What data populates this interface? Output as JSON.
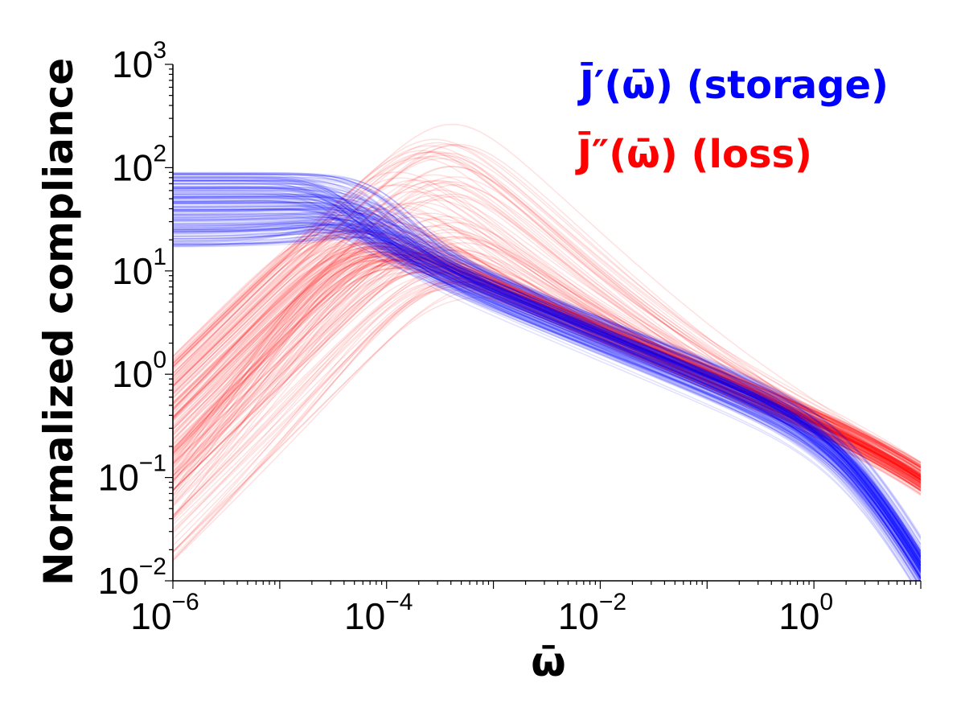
{
  "chart_data": {
    "type": "line",
    "title": "",
    "xlabel": "ω̄",
    "ylabel": "Normalized compliance",
    "x_scale": "log",
    "y_scale": "log",
    "xlim": [
      1e-06,
      10
    ],
    "ylim": [
      0.01,
      1000
    ],
    "x_ticks": [
      {
        "value": 1e-06,
        "base": "10",
        "exp": "−6"
      },
      {
        "value": 0.0001,
        "base": "10",
        "exp": "−4"
      },
      {
        "value": 0.01,
        "base": "10",
        "exp": "−2"
      },
      {
        "value": 1,
        "base": "10",
        "exp": "0"
      }
    ],
    "y_ticks": [
      {
        "value": 0.01,
        "base": "10",
        "exp": "−2"
      },
      {
        "value": 0.1,
        "base": "10",
        "exp": "−1"
      },
      {
        "value": 1,
        "base": "10",
        "exp": "0"
      },
      {
        "value": 10,
        "base": "10",
        "exp": "1"
      },
      {
        "value": 100,
        "base": "10",
        "exp": "2"
      },
      {
        "value": 1000,
        "base": "10",
        "exp": "3"
      }
    ],
    "grid": false,
    "legend_position": "top-right",
    "series": [
      {
        "name": "J̄′(ω̄) (storage)",
        "color": "#0000ff",
        "description_of_band": "ensemble of curves",
        "low_freq_plateau_range": [
          17,
          90
        ],
        "samples_median": {
          "x": [
            1e-06,
            1e-05,
            5e-05,
            0.0001,
            0.001,
            0.01,
            0.1,
            1,
            3,
            10
          ],
          "y": [
            40,
            40,
            35,
            25,
            12,
            4.5,
            1.3,
            0.3,
            0.1,
            0.012
          ]
        }
      },
      {
        "name": "J̄″(ω̄) (loss)",
        "color": "#ff0000",
        "description_of_band": "ensemble of curves",
        "low_freq_value_range_at_xmin": [
          0.013,
          1.5
        ],
        "samples_median": {
          "x": [
            1e-06,
            1e-05,
            5e-05,
            0.0001,
            0.001,
            0.01,
            0.1,
            1,
            3,
            10
          ],
          "y": [
            0.3,
            3,
            10,
            12,
            7,
            4,
            1.5,
            0.5,
            0.3,
            0.09
          ]
        }
      }
    ]
  }
}
